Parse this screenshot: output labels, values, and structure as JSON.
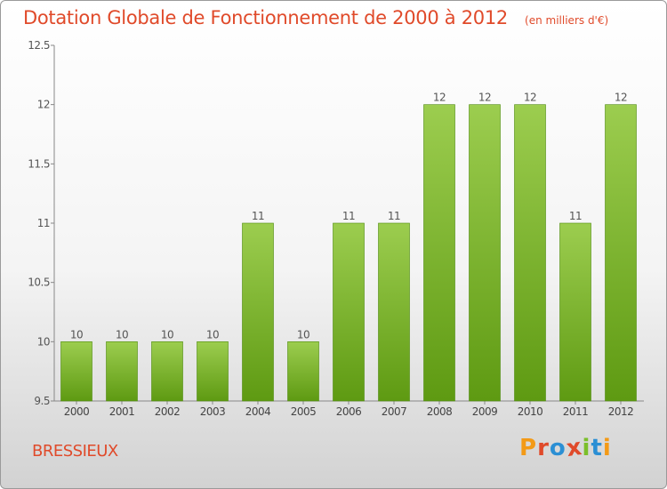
{
  "header": {
    "title": "Dotation Globale de Fonctionnement de 2000 à 2012",
    "subtitle": "(en milliers d'€)"
  },
  "footer": {
    "commune": "BRESSIEUX",
    "logo_letters": [
      "P",
      "r",
      "o",
      "x",
      "i",
      "t",
      "i"
    ]
  },
  "colors": {
    "title": "#e04a2a",
    "bar_top": "#9ccd4f",
    "bar_bottom": "#5e9a12",
    "logo": [
      "#f39a17",
      "#e04a2a",
      "#2b8fd4",
      "#e04a2a",
      "#7bbf2a",
      "#2b8fd4",
      "#f39a17"
    ]
  },
  "chart_data": {
    "type": "bar",
    "title": "Dotation Globale de Fonctionnement de 2000 à 2012",
    "subtitle": "(en milliers d'€)",
    "xlabel": "",
    "ylabel": "",
    "categories": [
      "2000",
      "2001",
      "2002",
      "2003",
      "2004",
      "2005",
      "2006",
      "2007",
      "2008",
      "2009",
      "2010",
      "2011",
      "2012"
    ],
    "values": [
      10,
      10,
      10,
      10,
      11,
      10,
      11,
      11,
      12,
      12,
      12,
      11,
      12
    ],
    "value_labels": [
      "10",
      "10",
      "10",
      "10",
      "11",
      "10",
      "11",
      "11",
      "12",
      "12",
      "12",
      "11",
      "12"
    ],
    "ylim": [
      9.5,
      12.5
    ],
    "yticks": [
      9.5,
      10,
      10.5,
      11,
      11.5,
      12,
      12.5
    ],
    "ytick_labels": [
      "9.5",
      "10",
      "10.5",
      "11",
      "11.5",
      "12",
      "12.5"
    ],
    "grid": false,
    "legend": "none"
  }
}
